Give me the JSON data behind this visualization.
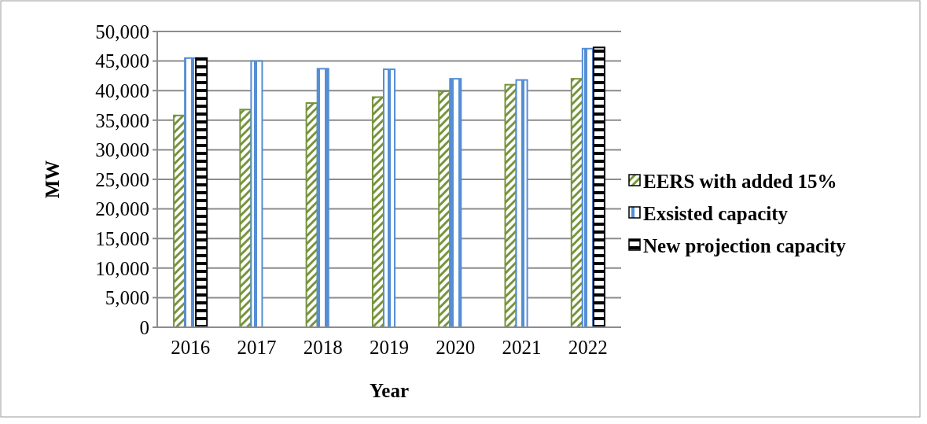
{
  "chart_data": {
    "type": "bar",
    "xlabel": "Year",
    "ylabel": "MW",
    "categories": [
      "2016",
      "2017",
      "2018",
      "2019",
      "2020",
      "2021",
      "2022"
    ],
    "series": [
      {
        "name": "EERS with added 15%",
        "color": "#77933c",
        "values": [
          35800,
          36800,
          37900,
          38900,
          39900,
          41000,
          42000
        ]
      },
      {
        "name": "Exsisted capacity",
        "color": "#558ed5",
        "values": [
          45500,
          45000,
          43700,
          43600,
          42000,
          41800,
          47100
        ]
      },
      {
        "name": "New projection capacity",
        "color": "#000000",
        "values": [
          45500,
          null,
          null,
          null,
          null,
          null,
          47300
        ]
      }
    ],
    "ylim": [
      0,
      50000
    ],
    "yticks": [
      {
        "value": 0,
        "label": "0"
      },
      {
        "value": 5000,
        "label": "5,000"
      },
      {
        "value": 10000,
        "label": "10,000"
      },
      {
        "value": 15000,
        "label": "15,000"
      },
      {
        "value": 20000,
        "label": "20,000"
      },
      {
        "value": 25000,
        "label": "25,000"
      },
      {
        "value": 30000,
        "label": "30,000"
      },
      {
        "value": 35000,
        "label": "35,000"
      },
      {
        "value": 40000,
        "label": "40,000"
      },
      {
        "value": 45000,
        "label": "45,000"
      },
      {
        "value": 50000,
        "label": "50,000"
      }
    ],
    "grid": "y",
    "legend": "right"
  }
}
